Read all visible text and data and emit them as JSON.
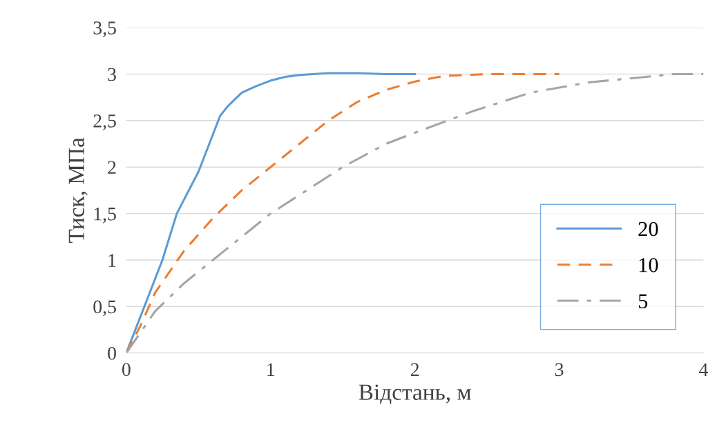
{
  "chart_data": {
    "type": "line",
    "xlabel": "Відстань, м",
    "ylabel": "Тиск, МПа",
    "xlim": [
      0,
      4
    ],
    "xticks": [
      0,
      1,
      2,
      3,
      4
    ],
    "ylim": [
      0,
      3.5
    ],
    "yticks": [
      0,
      {
        "value": 0.5,
        "label": "0,5"
      },
      1,
      {
        "value": 1.5,
        "label": "1,5"
      },
      2,
      {
        "value": 2.5,
        "label": "2,5"
      },
      3,
      {
        "value": 3.5,
        "label": "3,5"
      }
    ],
    "grid": "y",
    "legend": "lower right",
    "marker": "none",
    "series": [
      {
        "name": "20",
        "color": "#5b9bd5",
        "line_style": "solid",
        "x": [
          0,
          0.25,
          0.35,
          0.5,
          0.65,
          0.7,
          0.8,
          0.9,
          1.0,
          1.1,
          1.2,
          1.4,
          1.6,
          1.8,
          2.0
        ],
        "values": [
          0,
          1.0,
          1.5,
          1.95,
          2.55,
          2.65,
          2.8,
          2.87,
          2.93,
          2.97,
          2.99,
          3.01,
          3.01,
          3.0,
          3.0
        ]
      },
      {
        "name": "10",
        "color": "#ed7d31",
        "line_style": "dashed",
        "x": [
          0,
          0.1,
          0.2,
          0.4,
          0.6,
          0.8,
          1.0,
          1.2,
          1.4,
          1.6,
          1.8,
          2.0,
          2.2,
          2.5,
          2.8,
          3.0
        ],
        "values": [
          0,
          0.3,
          0.65,
          1.1,
          1.45,
          1.75,
          2.0,
          2.25,
          2.5,
          2.7,
          2.83,
          2.92,
          2.98,
          3.0,
          3.0,
          3.0
        ]
      },
      {
        "name": "5",
        "color": "#a5a5a5",
        "line_style": "dashdot",
        "x": [
          0,
          0.2,
          0.4,
          0.6,
          0.8,
          1.0,
          1.2,
          1.5,
          1.8,
          2.0,
          2.4,
          2.8,
          3.2,
          3.6,
          3.8,
          4.0
        ],
        "values": [
          0,
          0.45,
          0.75,
          1.0,
          1.25,
          1.5,
          1.7,
          2.0,
          2.25,
          2.37,
          2.6,
          2.8,
          2.91,
          2.97,
          3.0,
          3.0
        ]
      }
    ]
  }
}
